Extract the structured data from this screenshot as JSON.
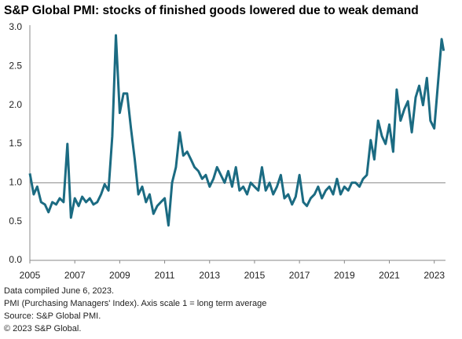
{
  "chart_data": {
    "type": "line",
    "title": "S&P Global PMI: stocks of finished goods lowered due to weak demand",
    "notes": [
      "Data compiled June 6, 2023.",
      "PMI (Purchasing Managers' Index). Axis scale 1 = long term average",
      "Source: S&P Global PMI.",
      "© 2023 S&P Global."
    ],
    "x": [
      2005,
      2005.17,
      2005.33,
      2005.5,
      2005.67,
      2005.83,
      2006,
      2006.17,
      2006.33,
      2006.5,
      2006.67,
      2006.83,
      2007,
      2007.17,
      2007.33,
      2007.5,
      2007.67,
      2007.83,
      2008,
      2008.17,
      2008.33,
      2008.5,
      2008.67,
      2008.83,
      2009,
      2009.17,
      2009.33,
      2009.5,
      2009.67,
      2009.83,
      2010,
      2010.17,
      2010.33,
      2010.5,
      2010.67,
      2010.83,
      2011,
      2011.17,
      2011.33,
      2011.5,
      2011.67,
      2011.83,
      2012,
      2012.17,
      2012.33,
      2012.5,
      2012.67,
      2012.83,
      2013,
      2013.17,
      2013.33,
      2013.5,
      2013.67,
      2013.83,
      2014,
      2014.17,
      2014.33,
      2014.5,
      2014.67,
      2014.83,
      2015,
      2015.17,
      2015.33,
      2015.5,
      2015.67,
      2015.83,
      2016,
      2016.17,
      2016.33,
      2016.5,
      2016.67,
      2016.83,
      2017,
      2017.17,
      2017.33,
      2017.5,
      2017.67,
      2017.83,
      2018,
      2018.17,
      2018.33,
      2018.5,
      2018.67,
      2018.83,
      2019,
      2019.17,
      2019.33,
      2019.5,
      2019.67,
      2019.83,
      2020,
      2020.17,
      2020.33,
      2020.5,
      2020.67,
      2020.83,
      2021,
      2021.17,
      2021.33,
      2021.5,
      2021.67,
      2021.83,
      2022,
      2022.17,
      2022.33,
      2022.5,
      2022.67,
      2022.83,
      2023,
      2023.17,
      2023.33,
      2023.42
    ],
    "series": [
      {
        "name": "Stocks of finished goods",
        "color": "#1b6b82",
        "values": [
          1.12,
          0.85,
          0.95,
          0.75,
          0.72,
          0.62,
          0.75,
          0.72,
          0.8,
          0.75,
          1.5,
          0.55,
          0.8,
          0.7,
          0.82,
          0.75,
          0.8,
          0.72,
          0.75,
          0.85,
          0.98,
          0.9,
          1.6,
          2.9,
          1.9,
          2.15,
          2.15,
          1.7,
          1.3,
          0.85,
          0.95,
          0.75,
          0.85,
          0.6,
          0.7,
          0.75,
          0.8,
          0.45,
          1.0,
          1.2,
          1.65,
          1.35,
          1.4,
          1.3,
          1.2,
          1.15,
          1.05,
          1.1,
          0.95,
          1.05,
          1.2,
          1.1,
          1.0,
          1.15,
          0.95,
          1.2,
          0.9,
          0.95,
          0.85,
          1.0,
          0.95,
          0.9,
          1.2,
          0.9,
          1.0,
          0.85,
          0.95,
          1.1,
          0.8,
          0.85,
          0.72,
          0.82,
          1.1,
          0.75,
          0.7,
          0.8,
          0.85,
          0.95,
          0.8,
          0.9,
          0.95,
          0.85,
          1.05,
          0.85,
          0.95,
          0.9,
          1.0,
          1.0,
          0.95,
          1.05,
          1.1,
          1.55,
          1.3,
          1.8,
          1.6,
          1.5,
          1.75,
          1.4,
          2.2,
          1.8,
          1.95,
          2.05,
          1.65,
          2.1,
          2.25,
          2.0,
          2.35,
          1.8,
          1.7,
          2.3,
          2.85,
          2.7
        ]
      }
    ],
    "reference_line": 1,
    "xlim": [
      2005,
      2023.5
    ],
    "xticks": [
      2005,
      2007,
      2009,
      2011,
      2013,
      2015,
      2017,
      2019,
      2021,
      2023
    ],
    "ylim": [
      0,
      3
    ],
    "yticks": [
      {
        "value": 0,
        "label": "0.0"
      },
      {
        "value": 0.5,
        "label": "0.5"
      },
      {
        "value": 1,
        "label": "1.0"
      },
      {
        "value": 1.5,
        "label": "1.5"
      },
      {
        "value": 2,
        "label": "2.0"
      },
      {
        "value": 2.5,
        "label": "2.5"
      },
      {
        "value": 3,
        "label": "3.0"
      }
    ]
  }
}
